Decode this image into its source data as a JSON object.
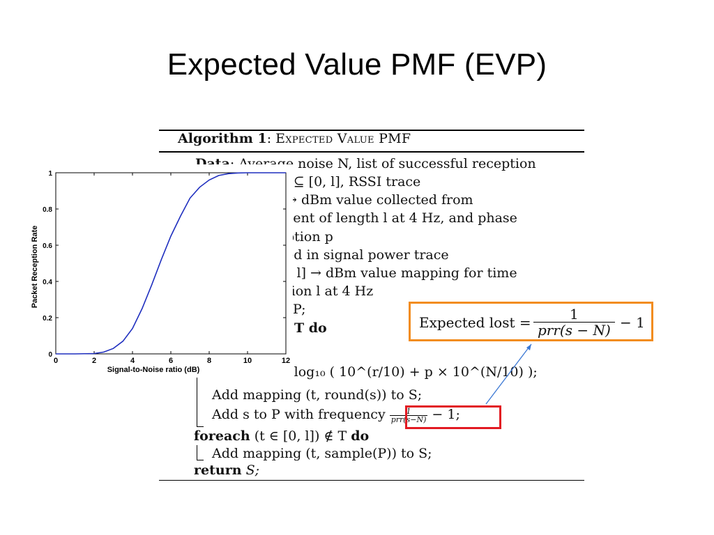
{
  "slide": {
    "title": "Expected Value PMF (EVP)"
  },
  "algorithm": {
    "title_label": "Algorithm 1",
    "title_name": "Expected Value PMF",
    "lines": {
      "data_kw": "Data",
      "l1_rest": ": Average noise N, list of successful reception",
      "l2": "T ⊆ [0, l], RSSI trace",
      "l3": "→ dBm value collected from",
      "l4": "nent of length l at 4 Hz, and phase",
      "l5": "ption p",
      "l6": "ed in signal power trace",
      "l7": "), l] → dBm value mapping for time",
      "l8": "tion l at 4 Hz",
      "l9": "P;",
      "l10": "T  do",
      "l11": "Find s = 10 log₁₀ ( 10^(r/10) + p × 10^(N/10) );",
      "l12": "Add mapping (t, round(s)) to S;",
      "l13_pre": "Add s to P with frequency",
      "l13_post": "− 1;",
      "foreach_kw": "foreach",
      "foreach_mid": "(t ∈ [0, l]) ∉ T",
      "do_kw": "do",
      "l15": "Add mapping (t,  sample(P)) to S;",
      "return_kw": "return",
      "return_val": "S;"
    },
    "small_frac_top": "1",
    "small_frac_bot": "prr(s−N)"
  },
  "formula": {
    "lhs": "Expected lost =",
    "frac_top": "1",
    "frac_bot": "prr(s − N)",
    "rest": "− 1"
  },
  "chart_data": {
    "type": "line",
    "xlabel": "Signal-to-Noise ratio (dB)",
    "ylabel": "Packet Reception Rate",
    "xlim": [
      0,
      12
    ],
    "ylim": [
      0,
      1
    ],
    "x_ticks": [
      "0",
      "2",
      "4",
      "6",
      "8",
      "10",
      "12"
    ],
    "y_ticks": [
      "0",
      "0.2",
      "0.4",
      "0.6",
      "0.8",
      "1"
    ],
    "grid": false,
    "series": [
      {
        "color": "#1f2fbf",
        "x": [
          0,
          1,
          2,
          2.5,
          3,
          3.5,
          4,
          4.5,
          5,
          5.5,
          6,
          6.5,
          7,
          7.5,
          8,
          8.5,
          9,
          9.5,
          10,
          11,
          12
        ],
        "y": [
          0,
          0,
          0.002,
          0.01,
          0.03,
          0.07,
          0.14,
          0.25,
          0.38,
          0.52,
          0.65,
          0.76,
          0.86,
          0.92,
          0.96,
          0.985,
          0.995,
          0.999,
          1,
          1,
          1
        ]
      }
    ]
  }
}
